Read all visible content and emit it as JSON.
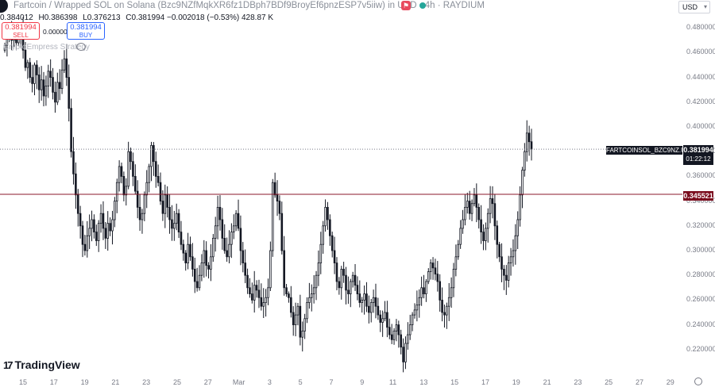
{
  "header": {
    "title": "Fartcoin / Wrapped SOL on Solana (Bzc9NZfMqkXR6fz1DBph7BDf9BroyEf6pnzESP7v5iiw) in USD · 4h · RAYDIUM",
    "currency": "USD",
    "ohlc": {
      "o": "0.384012",
      "h": "0.386398",
      "l": "0.376213",
      "c": "0.381994",
      "change": "−0.002018 (−0.53%)",
      "volume": "428.87 K"
    }
  },
  "trade": {
    "sell_price": "0.381994",
    "sell_label": "SELL",
    "spread": "0.000000",
    "buy_price": "0.381994",
    "buy_label": "BUY"
  },
  "strategy": "CryptoEmpress Strategy",
  "price_tag": {
    "symbol": "FARTCOINSOL_BZC9NZ.USD",
    "price": "0.381994",
    "countdown": "01:22:12"
  },
  "line_tag": {
    "price": "0.345521"
  },
  "brand": "TradingView",
  "colors": {
    "up": "#131722",
    "down": "#131722",
    "red_line": "#8b1a2b",
    "dotted_line": "#787b86"
  },
  "chart_data": {
    "type": "candlestick",
    "interval": "4h",
    "y_axis": {
      "ticks": [
        0.48,
        0.46,
        0.44,
        0.42,
        0.4,
        0.38,
        0.36,
        0.34,
        0.32,
        0.3,
        0.28,
        0.26,
        0.24,
        0.22
      ],
      "labels": [
        "0.480000",
        "0.460000",
        "0.440000",
        "0.420000",
        "0.400000",
        "0.380000",
        "0.360000",
        "0.340000",
        "0.320000",
        "0.300000",
        "0.280000",
        "0.260000",
        "0.240000",
        "0.220000"
      ]
    },
    "x_axis": {
      "labels": [
        "15",
        "17",
        "19",
        "21",
        "23",
        "25",
        "27",
        "Mar",
        "3",
        "5",
        "7",
        "9",
        "11",
        "13",
        "15",
        "17",
        "19",
        "21",
        "23",
        "25",
        "27",
        "29"
      ]
    },
    "horizontal_line": 0.345521,
    "last_price": 0.381994,
    "closes": [
      0.466,
      0.472,
      0.478,
      0.47,
      0.475,
      0.468,
      0.471,
      0.48,
      0.462,
      0.448,
      0.452,
      0.44,
      0.435,
      0.45,
      0.442,
      0.43,
      0.438,
      0.425,
      0.433,
      0.445,
      0.44,
      0.428,
      0.42,
      0.436,
      0.431,
      0.446,
      0.455,
      0.44,
      0.415,
      0.38,
      0.362,
      0.345,
      0.33,
      0.32,
      0.305,
      0.3,
      0.312,
      0.318,
      0.325,
      0.315,
      0.308,
      0.322,
      0.33,
      0.318,
      0.31,
      0.322,
      0.316,
      0.325,
      0.34,
      0.355,
      0.368,
      0.36,
      0.345,
      0.352,
      0.38,
      0.372,
      0.36,
      0.348,
      0.335,
      0.325,
      0.33,
      0.345,
      0.355,
      0.368,
      0.385,
      0.372,
      0.36,
      0.355,
      0.34,
      0.33,
      0.345,
      0.335,
      0.325,
      0.318,
      0.322,
      0.33,
      0.315,
      0.305,
      0.298,
      0.29,
      0.305,
      0.295,
      0.285,
      0.275,
      0.27,
      0.28,
      0.29,
      0.3,
      0.288,
      0.285,
      0.295,
      0.31,
      0.32,
      0.335,
      0.325,
      0.31,
      0.3,
      0.295,
      0.305,
      0.315,
      0.32,
      0.33,
      0.318,
      0.3,
      0.29,
      0.28,
      0.27,
      0.265,
      0.26,
      0.272,
      0.268,
      0.262,
      0.255,
      0.258,
      0.262,
      0.27,
      0.3,
      0.355,
      0.345,
      0.34,
      0.33,
      0.3,
      0.27,
      0.265,
      0.262,
      0.25,
      0.24,
      0.248,
      0.255,
      0.23,
      0.235,
      0.245,
      0.258,
      0.262,
      0.265,
      0.27,
      0.28,
      0.29,
      0.305,
      0.32,
      0.335,
      0.325,
      0.312,
      0.3,
      0.29,
      0.275,
      0.27,
      0.285,
      0.28,
      0.268,
      0.265,
      0.275,
      0.28,
      0.272,
      0.265,
      0.258,
      0.26,
      0.265,
      0.255,
      0.25,
      0.258,
      0.262,
      0.255,
      0.248,
      0.242,
      0.245,
      0.25,
      0.238,
      0.232,
      0.228,
      0.235,
      0.24,
      0.232,
      0.222,
      0.21,
      0.225,
      0.232,
      0.24,
      0.248,
      0.252,
      0.256,
      0.262,
      0.27,
      0.265,
      0.275,
      0.283,
      0.29,
      0.286,
      0.281,
      0.275,
      0.26,
      0.25,
      0.248,
      0.255,
      0.262,
      0.27,
      0.285,
      0.295,
      0.305,
      0.318,
      0.325,
      0.335,
      0.34,
      0.33,
      0.338,
      0.345,
      0.335,
      0.325,
      0.315,
      0.308,
      0.318,
      0.33,
      0.342,
      0.338,
      0.32,
      0.305,
      0.295,
      0.285,
      0.28,
      0.276,
      0.29,
      0.295,
      0.3,
      0.312,
      0.325,
      0.345,
      0.365,
      0.38,
      0.395,
      0.388,
      0.382
    ]
  }
}
